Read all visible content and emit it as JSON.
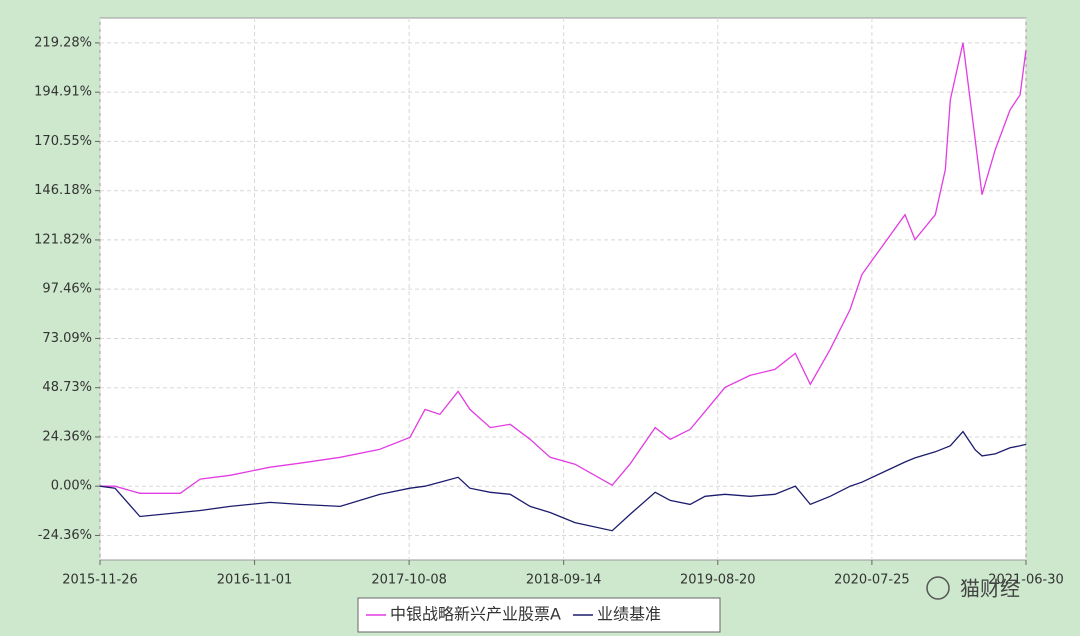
{
  "chart_data": {
    "type": "line",
    "x": [
      "2015-11-26",
      "2015-12-29",
      "2016-02-22",
      "2016-05-21",
      "2016-07-04",
      "2016-09-08",
      "2016-12-05",
      "2017-02-09",
      "2017-05-09",
      "2017-08-05",
      "2017-10-10",
      "2017-11-12",
      "2017-12-15",
      "2018-01-24",
      "2018-02-19",
      "2018-04-05",
      "2018-05-19",
      "2018-07-02",
      "2018-08-15",
      "2018-10-09",
      "2018-12-30",
      "2019-02-07",
      "2019-04-04",
      "2019-05-07",
      "2019-06-20",
      "2019-07-23",
      "2019-09-05",
      "2019-10-30",
      "2019-12-24",
      "2020-02-07",
      "2020-03-11",
      "2020-04-24",
      "2020-06-07",
      "2020-07-03",
      "2020-10-06",
      "2020-10-28",
      "2020-12-12",
      "2021-01-03",
      "2021-01-14",
      "2021-02-11",
      "2021-03-10",
      "2021-03-25",
      "2021-04-23",
      "2021-05-26",
      "2021-06-17",
      "2021-06-30"
    ],
    "series": [
      {
        "name": "中银战略新兴产业股票A",
        "color": "#e23ce2",
        "values": [
          0,
          0,
          -3.5,
          -3.5,
          3.5,
          5.4,
          9.4,
          11.4,
          14.3,
          18.3,
          24.2,
          38,
          35.5,
          46.9,
          38,
          29,
          30.6,
          23.2,
          14.3,
          10.9,
          0.5,
          10.9,
          29,
          23.2,
          28.1,
          37,
          48.9,
          54.8,
          57.8,
          65.7,
          50.4,
          67.7,
          87.4,
          104.7,
          134.3,
          122,
          134.3,
          156.5,
          191.1,
          219.3,
          171.4,
          144.2,
          166.4,
          186.2,
          193.6,
          215.8
        ]
      },
      {
        "name": "业绩基准",
        "color": "#1c1c6e",
        "values": [
          0,
          -1,
          -15,
          -13,
          -12,
          -10,
          -8,
          -9,
          -10,
          -4,
          -1,
          0,
          2,
          4.4,
          -1,
          -3,
          -4,
          -10,
          -13,
          -18,
          -22,
          -14,
          -3,
          -7,
          -9,
          -5,
          -4,
          -5,
          -4,
          0,
          -9,
          -5,
          0,
          2,
          12,
          14,
          17,
          19,
          20,
          27,
          18,
          15,
          16,
          19,
          20,
          20.7
        ]
      }
    ],
    "xlim": [
      "2015-11-26",
      "2021-06-30"
    ],
    "xticks": [
      "2015-11-26",
      "2016-11-01",
      "2017-10-08",
      "2018-09-14",
      "2019-08-20",
      "2020-07-25",
      "2021-06-30"
    ],
    "ylim": [
      -36.5,
      231.6
    ],
    "yticks": [
      {
        "value": -24.36,
        "label": "-24.36%"
      },
      {
        "value": 0,
        "label": "0.00%"
      },
      {
        "value": 24.36,
        "label": "24.36%"
      },
      {
        "value": 48.73,
        "label": "48.73%"
      },
      {
        "value": 73.09,
        "label": "73.09%"
      },
      {
        "value": 97.46,
        "label": "97.46%"
      },
      {
        "value": 121.82,
        "label": "121.82%"
      },
      {
        "value": 146.18,
        "label": "146.18%"
      },
      {
        "value": 170.55,
        "label": "170.55%"
      },
      {
        "value": 194.91,
        "label": "194.91%"
      },
      {
        "value": 219.28,
        "label": "219.28%"
      }
    ],
    "grid": true,
    "watermark": "猫财经"
  }
}
